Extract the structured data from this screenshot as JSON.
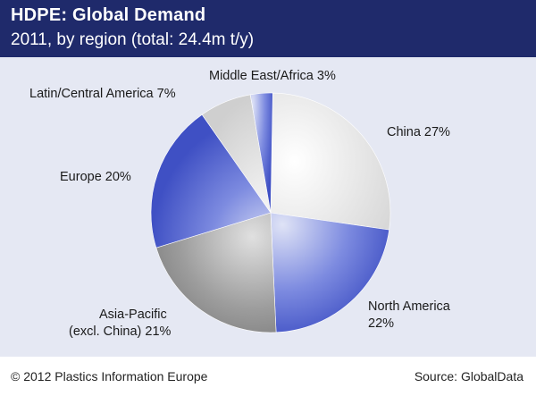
{
  "header": {
    "title": "HDPE: Global Demand",
    "subtitle": "2011, by region (total: 24.4m t/y)"
  },
  "footer": {
    "copyright": "© 2012 Plastics Information Europe",
    "source": "Source: GlobalData"
  },
  "colors": {
    "header_bg": "#1f2a6b",
    "plot_bg": "#e5e8f3",
    "blue_slice": "#5566c8",
    "grey_slice": "#8d8d8d",
    "light_slice": "#e6e6e6"
  },
  "chart_data": {
    "type": "pie",
    "title": "HDPE: Global Demand",
    "subtitle": "2011, by region (total: 24.4m t/y)",
    "unit": "%",
    "slices": [
      {
        "name": "China",
        "value": 27,
        "label": "China 27%"
      },
      {
        "name": "North America",
        "value": 22,
        "label": "North America 22%"
      },
      {
        "name": "Asia-Pacific (excl. China)",
        "value": 21,
        "label": "Asia-Pacific (excl. China) 21%"
      },
      {
        "name": "Europe",
        "value": 20,
        "label": "Europe 20%"
      },
      {
        "name": "Latin/Central America",
        "value": 7,
        "label": "Latin/Central America 7%"
      },
      {
        "name": "Middle East/Africa",
        "value": 3,
        "label": "Middle East/Africa 3%"
      }
    ],
    "labels": {
      "china": "China 27%",
      "north_america_1": "North America",
      "north_america_2": "22%",
      "asia_1": "Asia-Pacific",
      "asia_2": "(excl. China) 21%",
      "europe": "Europe 20%",
      "latin": "Latin/Central America 7%",
      "mideast": "Middle East/Africa 3%"
    }
  }
}
